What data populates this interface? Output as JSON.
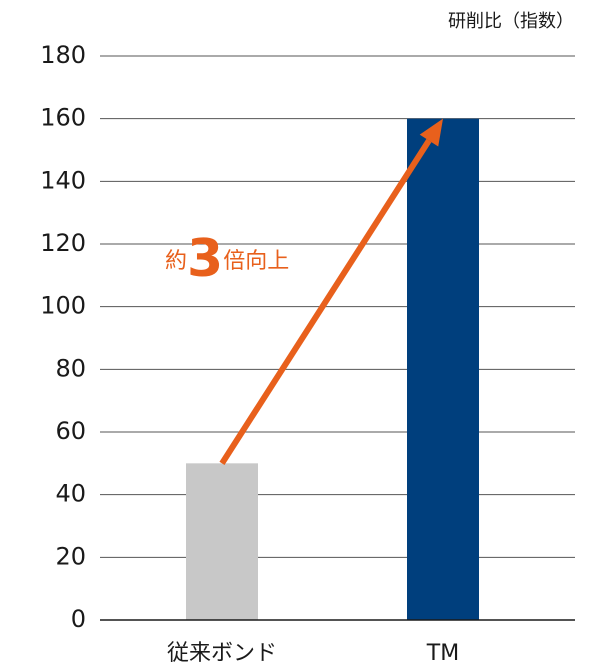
{
  "chart_data": {
    "type": "bar",
    "y_label": "研削比（指数）",
    "annotation_parts": [
      "約",
      "3",
      "倍向上"
    ],
    "categories": [
      "従来ボンド",
      "TM"
    ],
    "values": [
      50,
      160
    ],
    "colors": [
      "#c8c8c8",
      "#003f7d"
    ],
    "arrow_color": "#e8601c",
    "ylim": [
      0,
      180
    ],
    "yticks": [
      0,
      20,
      40,
      60,
      80,
      100,
      120,
      140,
      160,
      180
    ],
    "grid": true
  }
}
